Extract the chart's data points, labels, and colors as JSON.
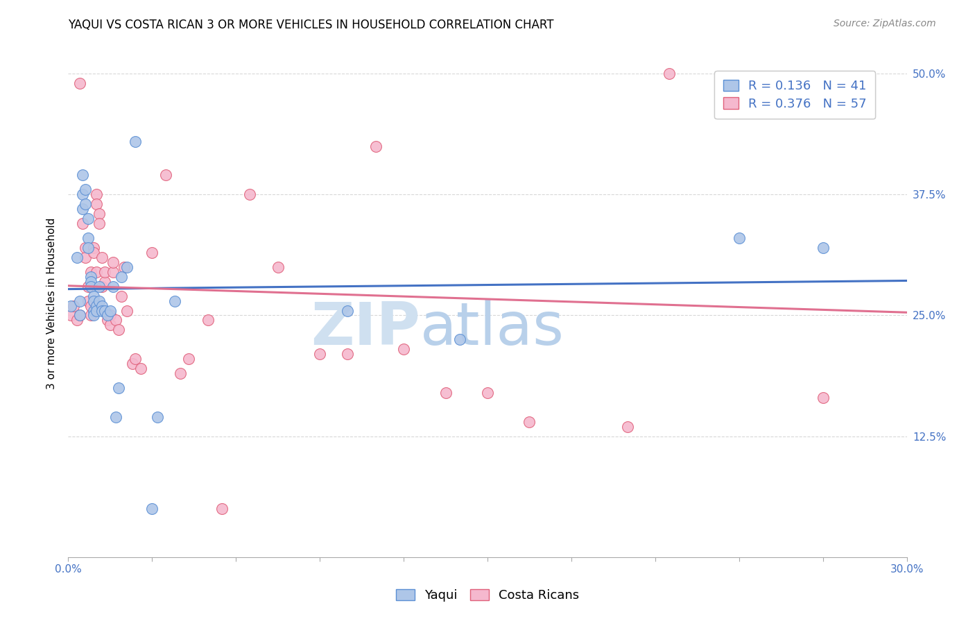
{
  "title": "YAQUI VS COSTA RICAN 3 OR MORE VEHICLES IN HOUSEHOLD CORRELATION CHART",
  "source": "Source: ZipAtlas.com",
  "ylabel": "3 or more Vehicles in Household",
  "yticks": [
    "12.5%",
    "25.0%",
    "37.5%",
    "50.0%"
  ],
  "ytick_vals": [
    0.125,
    0.25,
    0.375,
    0.5
  ],
  "xlim": [
    0.0,
    0.3
  ],
  "ylim": [
    0.0,
    0.525
  ],
  "legend_R_yaqui": "0.136",
  "legend_N_yaqui": "41",
  "legend_R_costa": "0.376",
  "legend_N_costa": "57",
  "color_yaqui_fill": "#aec6e8",
  "color_yaqui_edge": "#5b8fd4",
  "color_costa_fill": "#f5b8ce",
  "color_costa_edge": "#e0607a",
  "color_line_yaqui": "#4472c4",
  "color_line_costa": "#e07090",
  "color_text_blue": "#4472c4",
  "watermark_text": "ZIPatlas",
  "watermark_color": "#cfe0f0",
  "background_color": "#ffffff",
  "grid_color": "#d8d8d8",
  "yaqui_x": [
    0.001,
    0.003,
    0.004,
    0.004,
    0.005,
    0.005,
    0.005,
    0.006,
    0.006,
    0.007,
    0.007,
    0.007,
    0.008,
    0.008,
    0.008,
    0.009,
    0.009,
    0.009,
    0.009,
    0.01,
    0.01,
    0.011,
    0.011,
    0.012,
    0.012,
    0.013,
    0.014,
    0.015,
    0.016,
    0.017,
    0.018,
    0.019,
    0.021,
    0.024,
    0.03,
    0.032,
    0.038,
    0.1,
    0.14,
    0.24,
    0.27
  ],
  "yaqui_y": [
    0.26,
    0.31,
    0.25,
    0.265,
    0.36,
    0.375,
    0.395,
    0.365,
    0.38,
    0.35,
    0.33,
    0.32,
    0.29,
    0.285,
    0.28,
    0.27,
    0.265,
    0.255,
    0.25,
    0.26,
    0.255,
    0.28,
    0.265,
    0.26,
    0.255,
    0.255,
    0.25,
    0.255,
    0.28,
    0.145,
    0.175,
    0.29,
    0.3,
    0.43,
    0.05,
    0.145,
    0.265,
    0.255,
    0.225,
    0.33,
    0.32
  ],
  "costa_x": [
    0.001,
    0.002,
    0.003,
    0.004,
    0.004,
    0.005,
    0.006,
    0.006,
    0.007,
    0.007,
    0.008,
    0.008,
    0.008,
    0.009,
    0.009,
    0.01,
    0.01,
    0.01,
    0.011,
    0.011,
    0.012,
    0.012,
    0.013,
    0.013,
    0.014,
    0.014,
    0.015,
    0.015,
    0.016,
    0.016,
    0.017,
    0.018,
    0.019,
    0.02,
    0.021,
    0.023,
    0.024,
    0.026,
    0.03,
    0.035,
    0.04,
    0.043,
    0.05,
    0.055,
    0.065,
    0.075,
    0.09,
    0.1,
    0.11,
    0.12,
    0.135,
    0.15,
    0.165,
    0.2,
    0.215,
    0.25,
    0.27
  ],
  "costa_y": [
    0.25,
    0.26,
    0.245,
    0.25,
    0.49,
    0.345,
    0.32,
    0.31,
    0.28,
    0.265,
    0.295,
    0.26,
    0.25,
    0.32,
    0.315,
    0.375,
    0.365,
    0.295,
    0.355,
    0.345,
    0.28,
    0.31,
    0.285,
    0.295,
    0.25,
    0.245,
    0.25,
    0.24,
    0.295,
    0.305,
    0.245,
    0.235,
    0.27,
    0.3,
    0.255,
    0.2,
    0.205,
    0.195,
    0.315,
    0.395,
    0.19,
    0.205,
    0.245,
    0.05,
    0.375,
    0.3,
    0.21,
    0.21,
    0.425,
    0.215,
    0.17,
    0.17,
    0.14,
    0.135,
    0.5,
    0.49,
    0.165
  ],
  "title_fontsize": 12,
  "label_fontsize": 11,
  "tick_fontsize": 11,
  "legend_fontsize": 13,
  "source_fontsize": 10,
  "marker_size": 130
}
